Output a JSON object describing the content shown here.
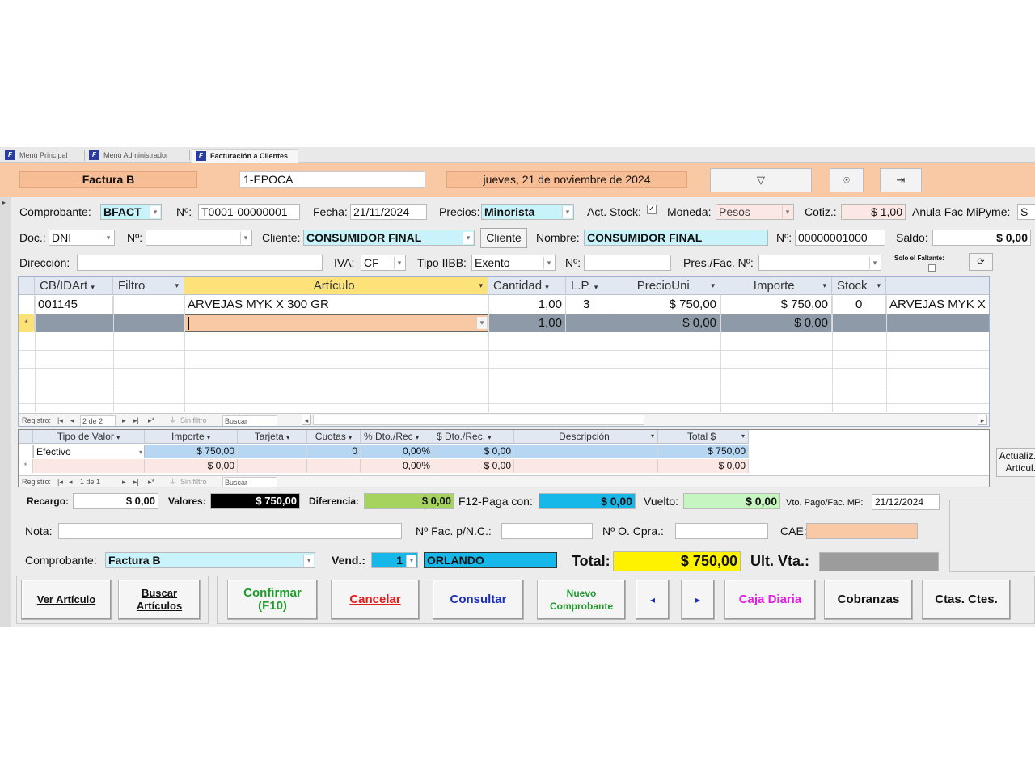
{
  "tabs": [
    "Menú Principal",
    "Menú Administrador",
    "Facturación a Clientes"
  ],
  "header": {
    "invoice_type": "Factura B",
    "point_of_sale": "1-EPOCA",
    "date_long": "jueves, 21 de noviembre de 2024",
    "btn1": "▽",
    "btn2": "⍟",
    "btn3": "⇥"
  },
  "row1": {
    "comprobante_label": "Comprobante:",
    "comprobante_value": "BFACT",
    "no_label": "Nº:",
    "no_value": "T0001-00000001",
    "fecha_label": "Fecha:",
    "fecha_value": "21/11/2024",
    "precios_label": "Precios:",
    "precios_value": "Minorista",
    "act_stock_label": "Act. Stock:",
    "moneda_label": "Moneda:",
    "moneda_value": "Pesos",
    "cotiz_label": "Cotiz.:",
    "cotiz_value": "$ 1,00",
    "anula_label": "Anula Fac MiPyme:",
    "anula_value": "S"
  },
  "row2": {
    "doc_label": "Doc.:",
    "doc_value": "DNI",
    "no_label": "Nº:",
    "no_value": "",
    "cliente_label": "Cliente:",
    "cliente_value": "CONSUMIDOR FINAL",
    "cliente_button": "Cliente",
    "nombre_label": "Nombre:",
    "nombre_value": "CONSUMIDOR FINAL",
    "no2_label": "Nº:",
    "no2_value": "00000001000",
    "saldo_label": "Saldo:",
    "saldo_value": "$ 0,00"
  },
  "row3": {
    "direccion_label": "Dirección:",
    "direccion_value": "",
    "iva_label": "IVA:",
    "iva_value": "CF",
    "tipo_iibb_label": "Tipo IIBB:",
    "tipo_iibb_value": "Exento",
    "no_label": "Nº:",
    "no_value": "",
    "pres_label": "Pres./Fac. Nº:",
    "pres_value": "",
    "solo_faltante_label": "Solo el Faltante:"
  },
  "items_grid": {
    "columns": [
      "CB/IDArt",
      "Filtro",
      "Artículo",
      "Cantidad",
      "L.P.",
      "PrecioUni",
      "Importe",
      "Stock"
    ],
    "rows": [
      {
        "id": "001145",
        "filtro": "",
        "articulo": "ARVEJAS MYK X 300 GR",
        "cantidad": "1,00",
        "lp": "3",
        "precio": "$ 750,00",
        "importe": "$ 750,00",
        "stock": "0",
        "desc": "ARVEJAS MYK X"
      }
    ],
    "new_row": {
      "marker": "*",
      "cantidad": "1,00",
      "precio": "$ 0,00",
      "importe": "$ 0,00"
    },
    "nav": {
      "label": "Registro:",
      "position": "2 de 2",
      "filter": "Sin filtro",
      "search": "Buscar"
    }
  },
  "payments_grid": {
    "columns": [
      "Tipo de Valor",
      "Importe",
      "Tarjeta",
      "Cuotas",
      "% Dto./Rec",
      "$ Dto./Rec.",
      "Descripción",
      "Total $"
    ],
    "rows": [
      {
        "tipo": "Efectivo",
        "importe": "$ 750,00",
        "tarjeta": "",
        "cuotas": "0",
        "pct": "0,00%",
        "dto": "$ 0,00",
        "desc": "",
        "total": "$ 750,00"
      }
    ],
    "new_row": {
      "marker": "*",
      "importe": "$ 0,00",
      "pct": "0,00%",
      "dto": "$ 0,00",
      "total": "$ 0,00"
    },
    "nav": {
      "label": "Registro:",
      "position": "1 de 1",
      "filter": "Sin filtro",
      "search": "Buscar"
    }
  },
  "side_button": "Actualiz. Artícul.",
  "totals": {
    "recargo_label": "Recargo:",
    "recargo_value": "$ 0,00",
    "valores_label": "Valores:",
    "valores_value": "$ 750,00",
    "diferencia_label": "Diferencia:",
    "diferencia_value": "$ 0,00",
    "paga_label": "F12-Paga con:",
    "paga_value": "$ 0,00",
    "vuelto_label": "Vuelto:",
    "vuelto_value": "$ 0,00",
    "vto_label": "Vto. Pago/Fac. MP:",
    "vto_value": "21/12/2024",
    "nota_label": "Nota:",
    "nota_value": "",
    "nc_label": "Nº Fac. p/N.C.:",
    "nc_value": "",
    "ocpra_label": "Nº O. Cpra.:",
    "ocpra_value": "",
    "cae_label": "CAE:",
    "cae_value": "",
    "comprobante_label": "Comprobante:",
    "comprobante_value": "Factura B",
    "vend_label": "Vend.:",
    "vend_value": "1",
    "vend_name": "ORLANDO",
    "total_label": "Total:",
    "total_value": "$ 750,00",
    "ult_label": "Ult. Vta.:",
    "ult_value": ""
  },
  "buttons": {
    "ver_articulo": "Ver Artículo",
    "buscar_articulos": "Buscar Artículos",
    "confirmar": "Confirmar (F10)",
    "cancelar": "Cancelar",
    "consultar": "Consultar",
    "nuevo": "Nuevo Comprobante",
    "prev": "◂",
    "next": "▸",
    "caja": "Caja Diaria",
    "cobranzas": "Cobranzas",
    "ctas": "Ctas. Ctes."
  },
  "colors": {
    "header_bg": "#f8c9a4",
    "cyan_field": "#c9f3fb",
    "valores_bg": "#000000",
    "diferencia_bg": "#a6d35d",
    "paga_bg": "#16b8ea",
    "vuelto_bg": "#c6f5c1",
    "total_bg": "#fff200",
    "vend_bg": "#16b8ea",
    "cae_bg": "#f8c9a4",
    "confirm_text": "#1f9b2e",
    "cancel_text": "#e21b1b",
    "consult_text": "#1a2fb8",
    "caja_text": "#e020e0"
  }
}
